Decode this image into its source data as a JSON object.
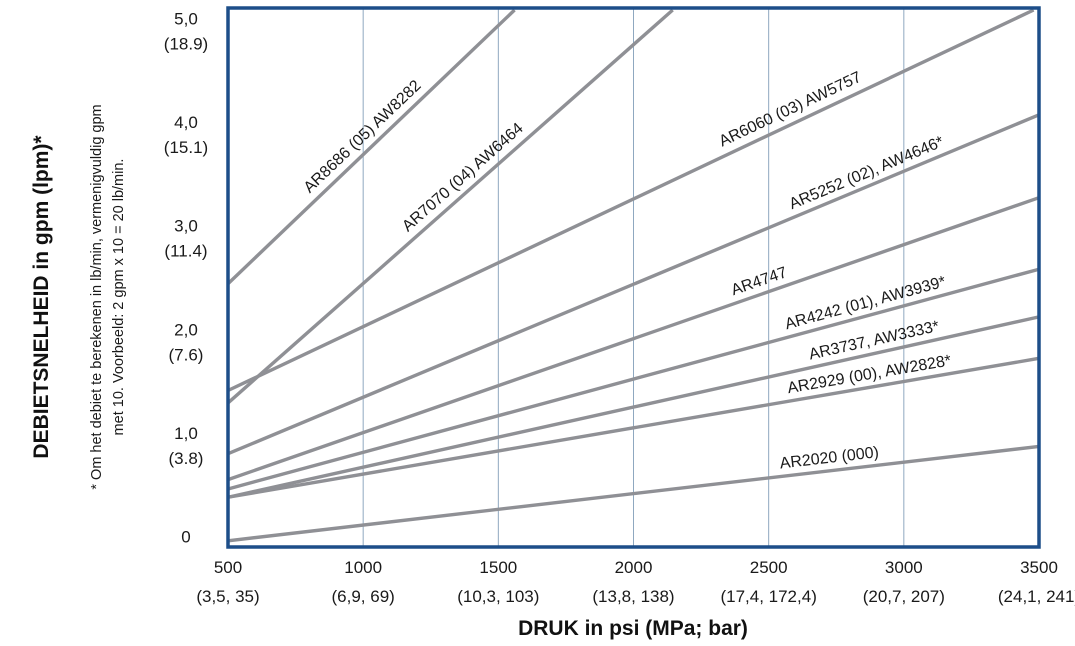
{
  "chart_data": {
    "type": "line",
    "xlabel": "DRUK in psi (MPa; bar)",
    "ylabel": "DEBIETSNELHEID in gpm (lpm)*",
    "footnote_line1": "* Om het debiet te berekenen in lb/min, vermenigvuldig gpm",
    "footnote_line2": "met 10. Voorbeeld: 2 gpm x 10 = 20 lb/min.",
    "xlim": [
      500,
      3500
    ],
    "ylim": [
      -0.1,
      5.1
    ],
    "grid": true,
    "x_ticks": [
      {
        "value": 500,
        "label": "500",
        "sublabel": "(3,5, 35)"
      },
      {
        "value": 1000,
        "label": "1000",
        "sublabel": "(6,9, 69)"
      },
      {
        "value": 1500,
        "label": "1500",
        "sublabel": "(10,3, 103)"
      },
      {
        "value": 2000,
        "label": "2000",
        "sublabel": "(13,8, 138)"
      },
      {
        "value": 2500,
        "label": "2500",
        "sublabel": "(17,4, 172,4)"
      },
      {
        "value": 3000,
        "label": "3000",
        "sublabel": "(20,7, 207)"
      },
      {
        "value": 3500,
        "label": "3500",
        "sublabel": "(24,1, 241)"
      }
    ],
    "y_ticks": [
      {
        "value": 0,
        "label": "0",
        "sublabel": ""
      },
      {
        "value": 1,
        "label": "1,0",
        "sublabel": "(3.8)"
      },
      {
        "value": 2,
        "label": "2,0",
        "sublabel": "(7.6)"
      },
      {
        "value": 3,
        "label": "3,0",
        "sublabel": "(11.4)"
      },
      {
        "value": 4,
        "label": "4,0",
        "sublabel": "(15.1)"
      },
      {
        "value": 5,
        "label": "5,0",
        "sublabel": "(18.9)"
      }
    ],
    "series": [
      {
        "name": "AR8686 (05) AW8282",
        "x": [
          500,
          1560
        ],
        "y": [
          2.44,
          5.1
        ],
        "label_x": 1030
      },
      {
        "name": "AR7070 (04) AW6464",
        "x": [
          500,
          2145
        ],
        "y": [
          1.29,
          5.1
        ],
        "label_x": 1400
      },
      {
        "name": "AR6060 (03) AW5757",
        "x": [
          500,
          3480
        ],
        "y": [
          1.41,
          5.1
        ],
        "label_x": 2600
      },
      {
        "name": "AR5252 (02), AW4646*",
        "x": [
          500,
          3500
        ],
        "y": [
          0.8,
          4.07
        ],
        "label_x": 2880
      },
      {
        "name": "AR4747",
        "x": [
          500,
          3500
        ],
        "y": [
          0.55,
          3.27
        ],
        "label_x": 2480
      },
      {
        "name": "AR4242 (01), AW3939*",
        "x": [
          500,
          3500
        ],
        "y": [
          0.46,
          2.58
        ],
        "label_x": 2870
      },
      {
        "name": "AR3737, AW3333*",
        "x": [
          500,
          3500
        ],
        "y": [
          0.38,
          2.12
        ],
        "label_x": 2900
      },
      {
        "name": "AR2929 (00), AW2828*",
        "x": [
          500,
          3500
        ],
        "y": [
          0.38,
          1.72
        ],
        "label_x": 2880
      },
      {
        "name": "AR2020 (000)",
        "x": [
          500,
          3500
        ],
        "y": [
          -0.04,
          0.87
        ],
        "label_x": 2730
      }
    ]
  },
  "colors": {
    "frame": "#1d4e89",
    "grid": "#8fa8c0",
    "line": "#8f9095"
  }
}
